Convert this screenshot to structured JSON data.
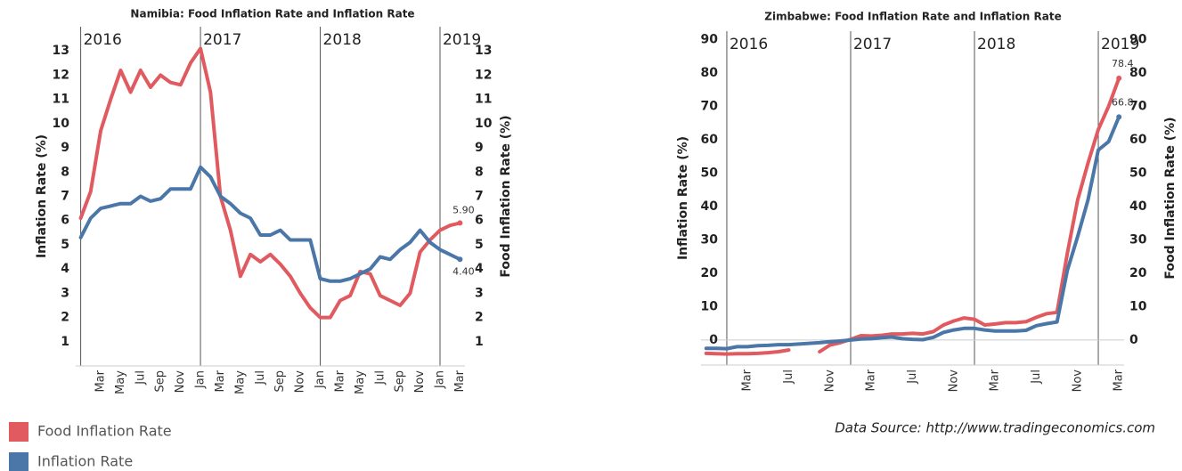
{
  "chart_data": [
    {
      "type": "line",
      "title": "Namibia: Food Inflation Rate and Inflation Rate",
      "y_label": "Inflation Rate (%)",
      "y2_label": "Food Inflation Rate (%)",
      "categories": [
        null,
        null,
        "Mar",
        null,
        "May",
        null,
        "Jul",
        null,
        "Sep",
        null,
        "Nov",
        null,
        "Jan",
        null,
        "Mar",
        null,
        "May",
        null,
        "Jul",
        null,
        "Sep",
        null,
        "Nov",
        null,
        "Jan",
        null,
        "Mar",
        null,
        "May",
        null,
        "Jul",
        null,
        "Sep",
        null,
        "Nov",
        null,
        "Jan",
        null,
        "Mar"
      ],
      "year_labels": [
        "2016",
        "2017",
        "2018",
        "2019"
      ],
      "ylim": [
        0,
        14
      ],
      "yticks": [
        1,
        2,
        3,
        4,
        5,
        6,
        7,
        8,
        9,
        10,
        11,
        12,
        13
      ],
      "y2lim": [
        0,
        14
      ],
      "y2ticks": [
        1,
        2,
        3,
        4,
        5,
        6,
        7,
        8,
        9,
        10,
        11,
        12,
        13
      ],
      "data_labels": "last",
      "zero_line": false,
      "series": [
        {
          "name": "Food Inflation Rate",
          "color": "#e05a5f",
          "axis": "y2",
          "values": [
            6.1,
            7.2,
            9.7,
            11.0,
            12.2,
            11.3,
            12.2,
            11.5,
            12.0,
            11.7,
            11.6,
            12.5,
            13.1,
            11.3,
            7.0,
            5.6,
            3.7,
            4.6,
            4.3,
            4.6,
            4.2,
            3.7,
            3.0,
            2.4,
            2.0,
            2.0,
            2.7,
            2.9,
            3.9,
            3.8,
            2.9,
            2.7,
            2.5,
            3.0,
            4.7,
            5.2,
            5.6,
            5.8,
            5.9
          ],
          "value_labels": [
            null,
            null,
            null,
            null,
            null,
            null,
            null,
            null,
            null,
            null,
            null,
            null,
            null,
            null,
            null,
            null,
            null,
            null,
            null,
            null,
            null,
            null,
            null,
            null,
            null,
            null,
            null,
            null,
            null,
            null,
            null,
            null,
            null,
            null,
            null,
            null,
            null,
            null,
            "5.90"
          ]
        },
        {
          "name": "Inflation Rate",
          "color": "#4a77a8",
          "values": [
            5.3,
            6.1,
            6.5,
            6.6,
            6.7,
            6.7,
            7.0,
            6.8,
            6.9,
            7.3,
            7.3,
            7.3,
            8.2,
            7.8,
            7.0,
            6.7,
            6.3,
            6.1,
            5.4,
            5.4,
            5.6,
            5.2,
            5.2,
            5.2,
            3.6,
            3.5,
            3.5,
            3.6,
            3.8,
            4.0,
            4.5,
            4.4,
            4.8,
            5.1,
            5.6,
            5.1,
            4.8,
            4.6,
            4.4
          ],
          "value_labels": [
            null,
            null,
            null,
            null,
            null,
            null,
            null,
            null,
            null,
            null,
            null,
            null,
            null,
            null,
            null,
            null,
            null,
            null,
            null,
            null,
            null,
            null,
            null,
            null,
            null,
            null,
            null,
            null,
            null,
            null,
            null,
            null,
            null,
            null,
            null,
            null,
            null,
            null,
            "4.40"
          ]
        }
      ]
    },
    {
      "type": "line",
      "title": "Zimbabwe: Food Inflation Rate and Inflation Rate",
      "y_label": "Inflation Rate (%)",
      "y2_label": "Food Inflation Rate (%)",
      "categories": [
        null,
        null,
        null,
        null,
        "Mar",
        null,
        null,
        null,
        "Jul",
        null,
        null,
        null,
        "Nov",
        null,
        null,
        null,
        "Mar",
        null,
        null,
        null,
        "Jul",
        null,
        null,
        null,
        "Nov",
        null,
        null,
        null,
        "Mar",
        null,
        null,
        null,
        "Jul",
        null,
        null,
        null,
        "Nov",
        null,
        null,
        null,
        "Mar"
      ],
      "year_labels": [
        "2016",
        "2017",
        "2018",
        "2019"
      ],
      "ylim": [
        -7.5,
        92.5
      ],
      "yticks": [
        0,
        10,
        20,
        30,
        40,
        50,
        60,
        70,
        80,
        90
      ],
      "y2lim": [
        -7.5,
        92.5
      ],
      "y2ticks": [
        0,
        10,
        20,
        30,
        40,
        50,
        60,
        70,
        80,
        90
      ],
      "data_labels": "last",
      "zero_line": true,
      "series": [
        {
          "color": "#e05a5f",
          "axis": "y2",
          "values": [
            -4.0,
            -4.1,
            -4.2,
            -4.1,
            -4.1,
            -4.0,
            -3.8,
            -3.5,
            -3.0,
            null,
            null,
            -3.5,
            -1.5,
            -0.8,
            0.2,
            1.3,
            1.2,
            1.4,
            1.8,
            1.8,
            2.0,
            1.8,
            2.5,
            4.5,
            5.7,
            6.6,
            6.2,
            4.5,
            4.8,
            5.2,
            5.2,
            5.5,
            6.8,
            7.9,
            8.3,
            26,
            42,
            53,
            63,
            70,
            78.4
          ]
        },
        {
          "color": "#4a77a8",
          "values": [
            -2.5,
            -2.5,
            -2.6,
            -2.0,
            -2.0,
            -1.7,
            -1.6,
            -1.4,
            -1.4,
            -1.2,
            -1.0,
            -0.8,
            -0.5,
            -0.3,
            0.0,
            0.3,
            0.4,
            0.7,
            0.9,
            0.4,
            0.2,
            0.1,
            0.8,
            2.3,
            3.0,
            3.5,
            3.5,
            3.0,
            2.7,
            2.7,
            2.7,
            2.9,
            4.3,
            4.9,
            5.4,
            20.9,
            31,
            42,
            56.9,
            59.4,
            66.8
          ]
        }
      ]
    }
  ],
  "source": "Data Source: http://www.tradingeconomics.com"
}
